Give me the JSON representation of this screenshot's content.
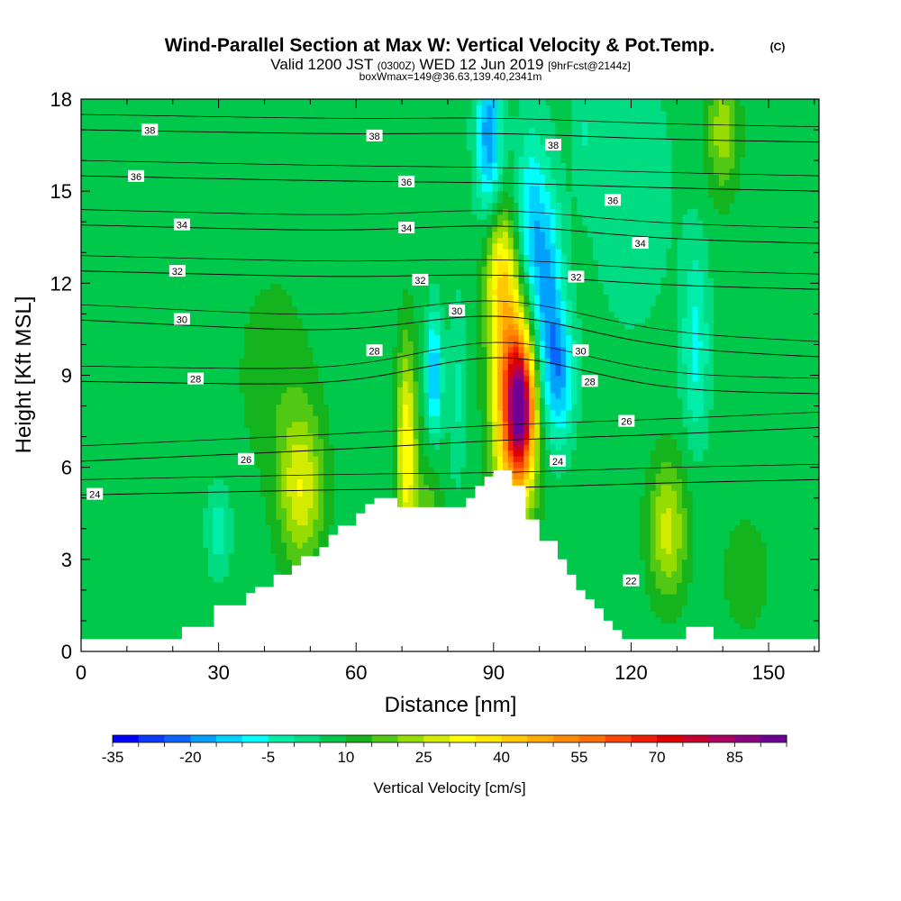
{
  "title": {
    "main": "Wind-Parallel Section at Max W: Vertical Velocity & Pot.Temp.",
    "copyright": "(C)",
    "valid_prefix": "Valid 1200 JST",
    "utc": "(0300Z)",
    "valid_date": "WED 12 Jun 2019",
    "forecast": "[9hrFcst@2144z]",
    "box": "boxWmax=149@36.63,139.40,2341m"
  },
  "chart_data": {
    "type": "contour",
    "xlabel": "Distance [nm]",
    "ylabel": "Height [Kft MSL]",
    "xlim": [
      0,
      161
    ],
    "ylim": [
      0,
      18
    ],
    "xticks": [
      0,
      30,
      60,
      90,
      120,
      150
    ],
    "yticks": [
      0,
      3,
      6,
      9,
      12,
      15,
      18
    ],
    "colorbar": {
      "label": "Vertical Velocity [cm/s]",
      "min": -35,
      "step": 5,
      "tick_labels": [
        "-35",
        "-20",
        "-5",
        "10",
        "25",
        "40",
        "55",
        "70",
        "85"
      ],
      "colors": [
        "#0000ff",
        "#0a3cff",
        "#0a64ff",
        "#00a0ff",
        "#00d2ff",
        "#00ffff",
        "#00eeaa",
        "#00dc82",
        "#00c84b",
        "#14b41e",
        "#50c814",
        "#96dc00",
        "#d2eb00",
        "#ffff00",
        "#ffe600",
        "#ffc800",
        "#ffaa00",
        "#ff8c00",
        "#ff6e00",
        "#ff4600",
        "#f01e00",
        "#dc0000",
        "#c80032",
        "#aa0064",
        "#8c0082",
        "#6e0096"
      ]
    },
    "terrain_kft": [
      [
        0,
        0.4
      ],
      [
        22,
        0.4
      ],
      [
        22,
        0.8
      ],
      [
        29,
        0.8
      ],
      [
        29,
        1.5
      ],
      [
        36,
        1.5
      ],
      [
        36,
        1.9
      ],
      [
        38,
        1.9
      ],
      [
        38,
        2.1
      ],
      [
        42,
        2.1
      ],
      [
        42,
        2.5
      ],
      [
        46,
        2.5
      ],
      [
        46,
        2.8
      ],
      [
        48,
        2.8
      ],
      [
        48,
        3.1
      ],
      [
        52,
        3.1
      ],
      [
        52,
        3.4
      ],
      [
        54,
        3.4
      ],
      [
        54,
        3.8
      ],
      [
        56,
        3.8
      ],
      [
        56,
        4.1
      ],
      [
        60,
        4.1
      ],
      [
        60,
        4.5
      ],
      [
        62,
        4.5
      ],
      [
        62,
        4.8
      ],
      [
        64,
        4.8
      ],
      [
        64,
        5.0
      ],
      [
        69,
        5.0
      ],
      [
        69,
        4.7
      ],
      [
        76,
        4.7
      ],
      [
        76,
        4.7
      ],
      [
        84,
        4.7
      ],
      [
        84,
        5.0
      ],
      [
        86,
        5.0
      ],
      [
        86,
        5.4
      ],
      [
        88,
        5.4
      ],
      [
        88,
        5.7
      ],
      [
        90,
        5.7
      ],
      [
        90,
        5.9
      ],
      [
        94,
        5.9
      ],
      [
        94,
        5.4
      ],
      [
        97,
        5.4
      ],
      [
        97,
        4.3
      ],
      [
        100,
        4.3
      ],
      [
        100,
        3.6
      ],
      [
        104,
        3.6
      ],
      [
        104,
        3.0
      ],
      [
        106,
        3.0
      ],
      [
        106,
        2.5
      ],
      [
        108,
        2.5
      ],
      [
        108,
        2.0
      ],
      [
        110,
        2.0
      ],
      [
        110,
        1.7
      ],
      [
        112,
        1.7
      ],
      [
        112,
        1.4
      ],
      [
        114,
        1.4
      ],
      [
        114,
        1.0
      ],
      [
        116,
        1.0
      ],
      [
        116,
        0.7
      ],
      [
        118,
        0.7
      ],
      [
        118,
        0.4
      ],
      [
        132,
        0.4
      ],
      [
        132,
        0.8
      ],
      [
        138,
        0.8
      ],
      [
        138,
        0.4
      ],
      [
        161,
        0.4
      ]
    ],
    "theta_contours": [
      {
        "value": 24,
        "label": "24",
        "label_x": 3,
        "y0": 5.1,
        "mid_y": 5.3,
        "y1": 5.6
      },
      {
        "value": 26,
        "label": "26",
        "label_x": 36,
        "y0": 6.2,
        "mid_y": 6.8,
        "y1": 7.3
      },
      {
        "value": 28,
        "label": "28",
        "label_x": 25,
        "y0": 8.8,
        "mid_y": 9.6,
        "y1": 8.4
      },
      {
        "value": 30,
        "label": "30",
        "label_x": 22,
        "y0": 10.8,
        "mid_y": 11.0,
        "y1": 9.6
      },
      {
        "value": 32,
        "label": "32",
        "label_x": 21,
        "y0": 12.4,
        "mid_y": 12.3,
        "y1": 11.8
      },
      {
        "value": 34,
        "label": "34",
        "label_x": 22,
        "y0": 13.9,
        "mid_y": 13.9,
        "y1": 13.3
      },
      {
        "value": 36,
        "label": "36",
        "label_x": 12,
        "y0": 15.5,
        "mid_y": 15.3,
        "y1": 15.0
      },
      {
        "value": 38,
        "label": "38",
        "label_x": 15,
        "y0": 17.0,
        "mid_y": 16.9,
        "y1": 16.6
      }
    ],
    "extra_labels": [
      {
        "text": "38",
        "x": 64,
        "y": 16.8
      },
      {
        "text": "38",
        "x": 103,
        "y": 16.5
      },
      {
        "text": "36",
        "x": 71,
        "y": 15.3
      },
      {
        "text": "36",
        "x": 116,
        "y": 14.7
      },
      {
        "text": "34",
        "x": 71,
        "y": 13.8
      },
      {
        "text": "34",
        "x": 122,
        "y": 13.3
      },
      {
        "text": "32",
        "x": 74,
        "y": 12.1
      },
      {
        "text": "32",
        "x": 108,
        "y": 12.2
      },
      {
        "text": "30",
        "x": 82,
        "y": 11.1
      },
      {
        "text": "30",
        "x": 109,
        "y": 9.8
      },
      {
        "text": "28",
        "x": 64,
        "y": 9.8
      },
      {
        "text": "28",
        "x": 111,
        "y": 8.8
      },
      {
        "text": "26",
        "x": 119,
        "y": 7.5
      },
      {
        "text": "24",
        "x": 104,
        "y": 6.2
      },
      {
        "text": "22",
        "x": 120,
        "y": 2.3
      }
    ],
    "w_features": [
      {
        "x": 95,
        "y": 7.5,
        "sx": 3.2,
        "sy": 2.3,
        "w": 45
      },
      {
        "x": 96,
        "y": 8.0,
        "sx": 1.8,
        "sy": 1.3,
        "w": 45
      },
      {
        "x": 93,
        "y": 10.5,
        "sx": 2.8,
        "sy": 2.5,
        "w": 25
      },
      {
        "x": 91,
        "y": 12.5,
        "sx": 2.2,
        "sy": 1.3,
        "w": 15
      },
      {
        "x": 71,
        "y": 6.5,
        "sx": 1.6,
        "sy": 2.5,
        "w": 28
      },
      {
        "x": 48,
        "y": 5.3,
        "sx": 3.5,
        "sy": 1.8,
        "w": 22
      },
      {
        "x": 128,
        "y": 4.0,
        "sx": 3.0,
        "sy": 1.6,
        "w": 20
      },
      {
        "x": 76,
        "y": 4.5,
        "sx": 2.0,
        "sy": 1.4,
        "w": 10
      },
      {
        "x": 42,
        "y": 9.0,
        "sx": 6.0,
        "sy": 2.5,
        "w": 6
      },
      {
        "x": 102,
        "y": 11.0,
        "sx": 2.2,
        "sy": 2.6,
        "w": -24
      },
      {
        "x": 98,
        "y": 13.8,
        "sx": 2.4,
        "sy": 2.2,
        "w": -20
      },
      {
        "x": 89,
        "y": 16.8,
        "sx": 2.0,
        "sy": 1.8,
        "w": -26
      },
      {
        "x": 105,
        "y": 9.0,
        "sx": 2.0,
        "sy": 1.4,
        "w": -18
      },
      {
        "x": 77,
        "y": 9.0,
        "sx": 1.2,
        "sy": 1.4,
        "w": -22
      },
      {
        "x": 134,
        "y": 10.0,
        "sx": 2.0,
        "sy": 2.2,
        "w": -14
      },
      {
        "x": 30,
        "y": 4.0,
        "sx": 1.8,
        "sy": 1.0,
        "w": -10
      },
      {
        "x": 82,
        "y": 8.5,
        "sx": 1.3,
        "sy": 2.0,
        "w": -8
      },
      {
        "x": 120,
        "y": 15.0,
        "sx": 6.0,
        "sy": 3.0,
        "w": -6
      },
      {
        "x": 140,
        "y": 17.0,
        "sx": 2.5,
        "sy": 1.5,
        "w": 16
      },
      {
        "x": 145,
        "y": 2.5,
        "sx": 4.0,
        "sy": 1.5,
        "w": 6
      },
      {
        "x": 110,
        "y": 17.0,
        "sx": 2.0,
        "sy": 1.5,
        "w": -6
      }
    ]
  }
}
